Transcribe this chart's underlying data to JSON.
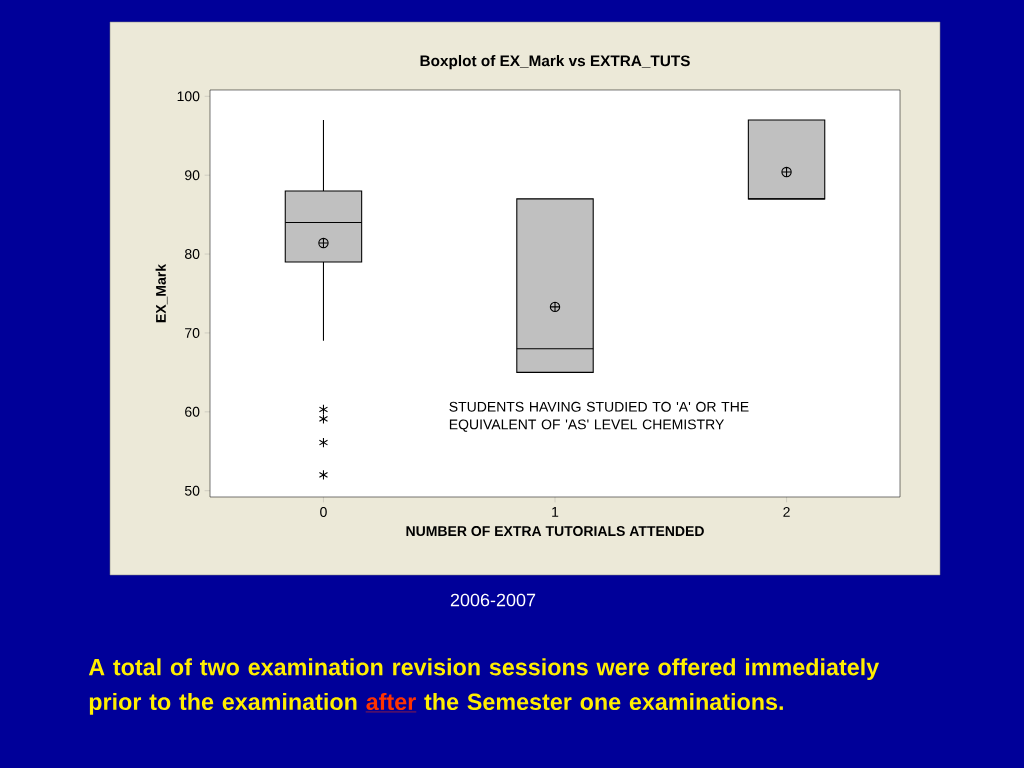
{
  "chart_data": {
    "type": "box",
    "title": "Boxplot of EX_Mark vs EXTRA_TUTS",
    "xlabel": "NUMBER OF EXTRA TUTORIALS ATTENDED",
    "ylabel": "EX_Mark",
    "categories": [
      "0",
      "1",
      "2"
    ],
    "color": "#c0c0c0",
    "boxes": [
      {
        "low": 69,
        "q1": 79,
        "median": 84,
        "q3": 88,
        "high": 97,
        "mean": 81.4,
        "outliers": [
          60.3,
          59.1,
          56.1,
          52
        ]
      },
      {
        "low": 65,
        "q1": 65,
        "median": 68,
        "q3": 87,
        "high": 87,
        "mean": 73.3
      },
      {
        "low": 87,
        "q1": 87,
        "median": 87,
        "q3": 97,
        "high": 97,
        "mean": 90.4
      }
    ],
    "ylim": [
      49.2,
      100.8
    ],
    "yticks": [
      50,
      60,
      70,
      80,
      90,
      100
    ],
    "annotations": [
      "STUDENTS HAVING STUDIED TO 'A' OR THE EQUIVALENT OF 'AS' LEVEL CHEMISTRY",
      "2006-2007",
      "A total of two examination revision sessions were offered immediately prior to the examination",
      "after",
      "the Semester one examinations."
    ]
  }
}
